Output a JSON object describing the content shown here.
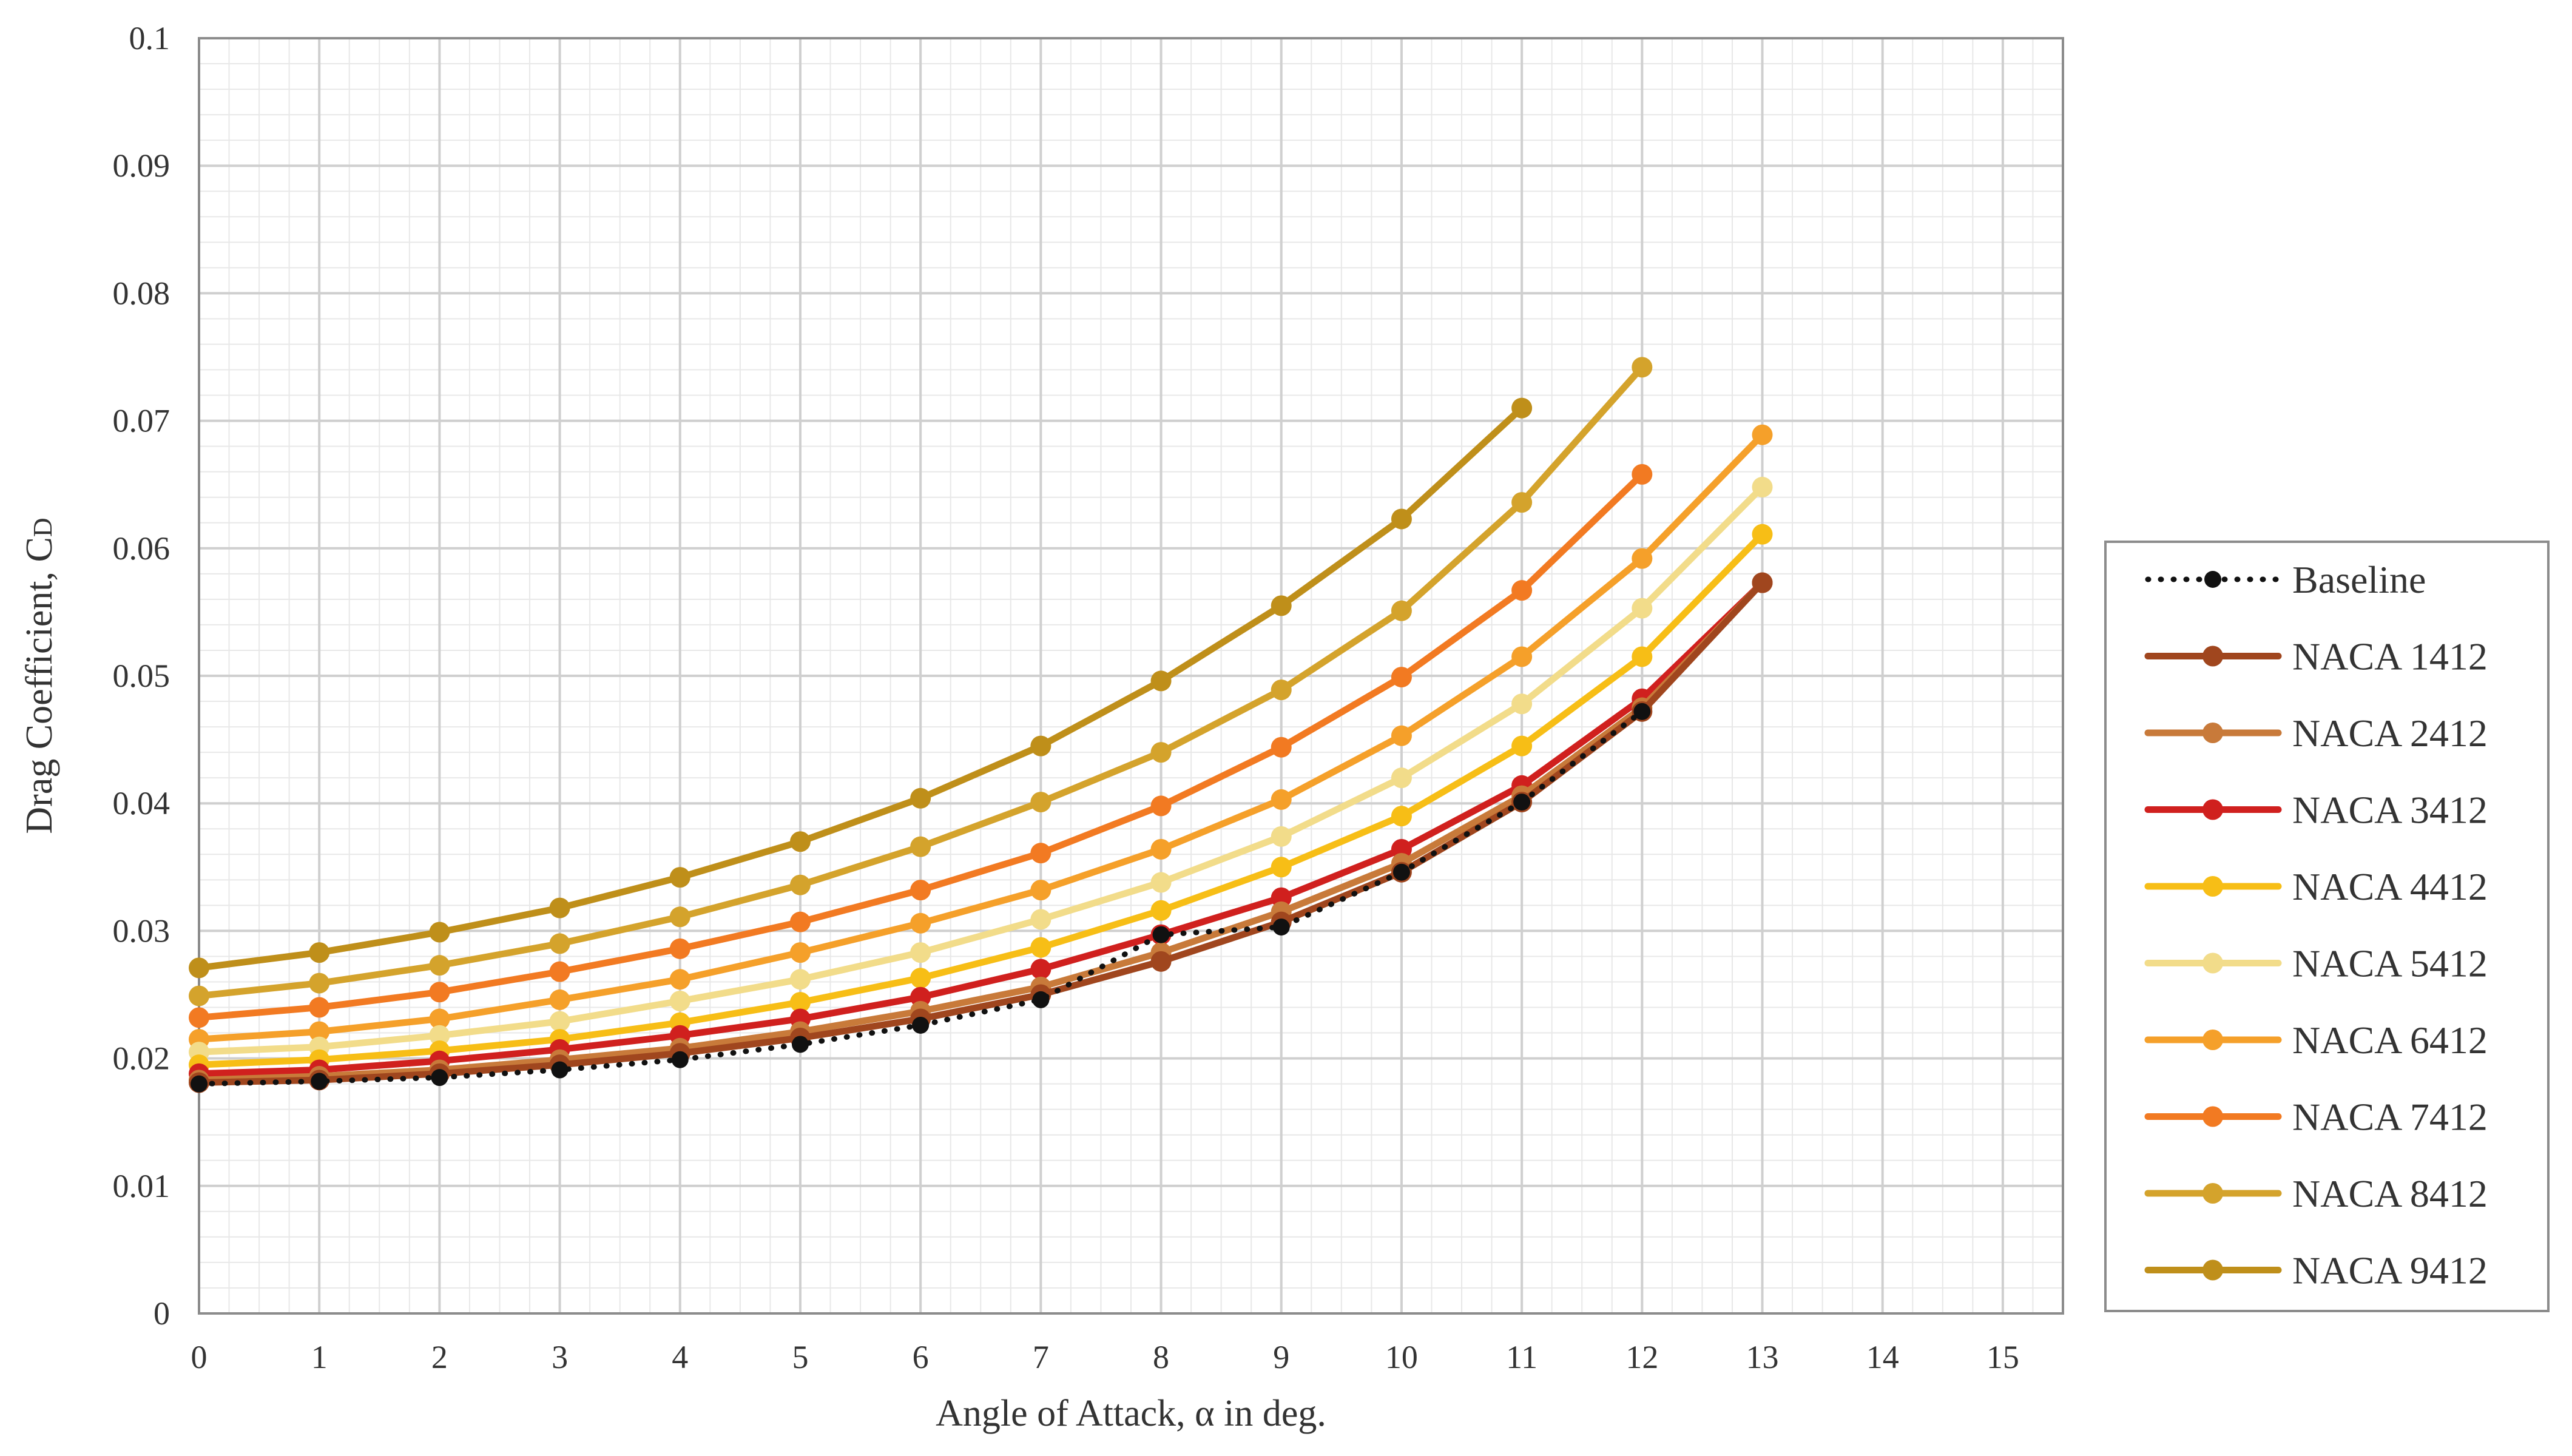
{
  "chart_data": {
    "type": "line",
    "xlabel": "Angle of Attack, α  in deg.",
    "ylabel": "Drag Coefficient, C",
    "ylabel_subscript": "D",
    "xlim": [
      0,
      15.5
    ],
    "ylim": [
      0,
      0.1
    ],
    "x_ticks": [
      "0",
      "1",
      "2",
      "3",
      "4",
      "5",
      "6",
      "7",
      "8",
      "9",
      "10",
      "11",
      "12",
      "13",
      "14",
      "15"
    ],
    "y_ticks": [
      "0",
      "0.01",
      "0.02",
      "0.03",
      "0.04",
      "0.05",
      "0.06",
      "0.07",
      "0.08",
      "0.09",
      "0.1"
    ],
    "grid": true,
    "minor_grid": true,
    "legend_position": "right",
    "series": [
      {
        "name": "Baseline",
        "color": "#111111",
        "style": "dotted",
        "x": [
          0,
          1,
          2,
          3,
          4,
          5,
          6,
          7,
          8,
          9,
          10,
          11,
          12
        ],
        "values": [
          0.018,
          0.0182,
          0.0185,
          0.0191,
          0.0199,
          0.0211,
          0.0226,
          0.0246,
          0.0297,
          0.0303,
          0.0346,
          0.0401,
          0.0472
        ]
      },
      {
        "name": "NACA 1412",
        "color": "#a0461e",
        "style": "solid",
        "x": [
          0,
          1,
          2,
          3,
          4,
          5,
          6,
          7,
          8,
          9,
          10,
          11,
          12,
          13
        ],
        "values": [
          0.0181,
          0.0183,
          0.0188,
          0.0195,
          0.0204,
          0.0216,
          0.0231,
          0.025,
          0.0276,
          0.0307,
          0.0346,
          0.0401,
          0.0472,
          0.0573
        ]
      },
      {
        "name": "NACA 2412",
        "color": "#c87a3a",
        "style": "solid",
        "x": [
          0,
          1,
          2,
          3,
          4,
          5,
          6,
          7,
          8,
          9,
          10,
          11,
          12,
          13
        ],
        "values": [
          0.0183,
          0.0186,
          0.0191,
          0.0199,
          0.0208,
          0.0221,
          0.0237,
          0.0256,
          0.0283,
          0.0315,
          0.0353,
          0.0406,
          0.0475,
          0.0573
        ]
      },
      {
        "name": "NACA 3412",
        "color": "#d0201e",
        "style": "solid",
        "x": [
          0,
          1,
          2,
          3,
          4,
          5,
          6,
          7,
          8,
          9,
          10,
          11,
          12,
          13
        ],
        "values": [
          0.0188,
          0.0191,
          0.0198,
          0.0207,
          0.0218,
          0.0231,
          0.0248,
          0.027,
          0.0297,
          0.0326,
          0.0364,
          0.0414,
          0.0482,
          0.0573
        ]
      },
      {
        "name": "NACA 4412",
        "color": "#f7be16",
        "style": "solid",
        "x": [
          0,
          1,
          2,
          3,
          4,
          5,
          6,
          7,
          8,
          9,
          10,
          11,
          12,
          13
        ],
        "values": [
          0.0195,
          0.0199,
          0.0206,
          0.0215,
          0.0228,
          0.0244,
          0.0263,
          0.0287,
          0.0316,
          0.035,
          0.039,
          0.0445,
          0.0515,
          0.0611
        ]
      },
      {
        "name": "NACA 5412",
        "color": "#f2dc8a",
        "style": "solid",
        "x": [
          0,
          1,
          2,
          3,
          4,
          5,
          6,
          7,
          8,
          9,
          10,
          11,
          12,
          13
        ],
        "values": [
          0.0205,
          0.0209,
          0.0218,
          0.0229,
          0.0245,
          0.0262,
          0.0283,
          0.0309,
          0.0338,
          0.0374,
          0.042,
          0.0478,
          0.0553,
          0.0648
        ]
      },
      {
        "name": "NACA 6412",
        "color": "#f5a02a",
        "style": "solid",
        "x": [
          0,
          1,
          2,
          3,
          4,
          5,
          6,
          7,
          8,
          9,
          10,
          11,
          12,
          13
        ],
        "values": [
          0.0215,
          0.0221,
          0.0231,
          0.0246,
          0.0262,
          0.0283,
          0.0306,
          0.0332,
          0.0364,
          0.0403,
          0.0453,
          0.0515,
          0.0592,
          0.0689
        ]
      },
      {
        "name": "NACA 7412",
        "color": "#f27a22",
        "style": "solid",
        "x": [
          0,
          1,
          2,
          3,
          4,
          5,
          6,
          7,
          8,
          9,
          10,
          11,
          12
        ],
        "values": [
          0.0232,
          0.024,
          0.0252,
          0.0268,
          0.0286,
          0.0307,
          0.0332,
          0.0361,
          0.0398,
          0.0444,
          0.0499,
          0.0567,
          0.0658
        ]
      },
      {
        "name": "NACA 8412",
        "color": "#d4a32c",
        "style": "solid",
        "x": [
          0,
          1,
          2,
          3,
          4,
          5,
          6,
          7,
          8,
          9,
          10,
          11,
          12
        ],
        "values": [
          0.0249,
          0.0259,
          0.0273,
          0.029,
          0.0311,
          0.0336,
          0.0366,
          0.0401,
          0.044,
          0.0489,
          0.0551,
          0.0636,
          0.0742
        ]
      },
      {
        "name": "NACA 9412",
        "color": "#bf8f1a",
        "style": "solid",
        "x": [
          0,
          1,
          2,
          3,
          4,
          5,
          6,
          7,
          8,
          9,
          10,
          11
        ],
        "values": [
          0.0271,
          0.0283,
          0.0299,
          0.0318,
          0.0342,
          0.037,
          0.0404,
          0.0445,
          0.0496,
          0.0555,
          0.0623,
          0.071
        ]
      }
    ]
  }
}
